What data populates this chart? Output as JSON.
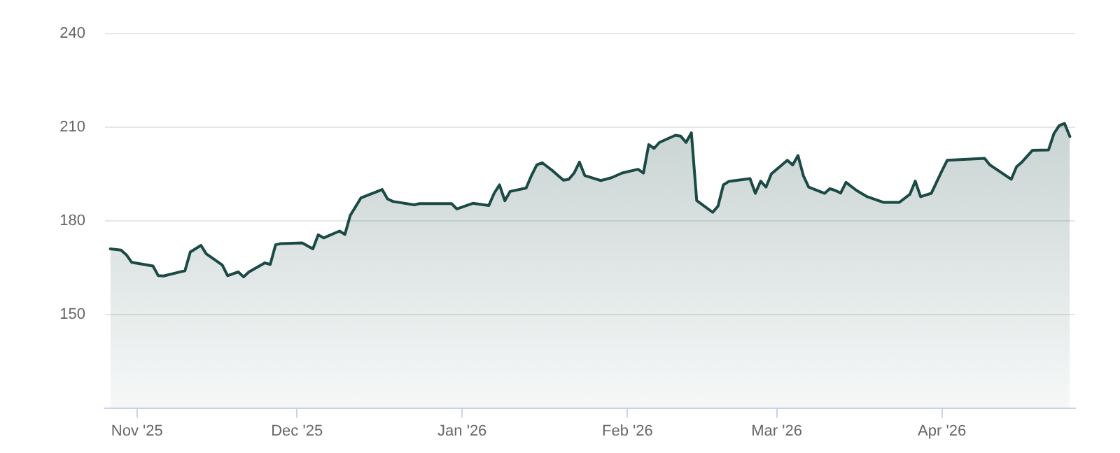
{
  "chart_data": {
    "type": "area",
    "xlim": [
      "2025-10-26",
      "2026-04-26"
    ],
    "ylim": [
      120,
      240
    ],
    "yticks": [
      150,
      180,
      210,
      240
    ],
    "xticks": [
      {
        "value": "2025-11-01",
        "label": "Nov '25"
      },
      {
        "value": "2025-12-01",
        "label": "Dec '25"
      },
      {
        "value": "2026-01-01",
        "label": "Jan '26"
      },
      {
        "value": "2026-02-01",
        "label": "Feb '26"
      },
      {
        "value": "2026-03-01",
        "label": "Mar '26"
      },
      {
        "value": "2026-04-01",
        "label": "Apr '26"
      }
    ],
    "grid": "y",
    "marker": "none",
    "line_style": "solid",
    "x": [
      "2025-10-27",
      "2025-10-29",
      "2025-10-30",
      "2025-10-31",
      "2025-11-04",
      "2025-11-05",
      "2025-11-06",
      "2025-11-10",
      "2025-11-11",
      "2025-11-13",
      "2025-11-14",
      "2025-11-15",
      "2025-11-17",
      "2025-11-18",
      "2025-11-20",
      "2025-11-21",
      "2025-11-22",
      "2025-11-25",
      "2025-11-26",
      "2025-11-27",
      "2025-11-28",
      "2025-12-02",
      "2025-12-04",
      "2025-12-05",
      "2025-12-06",
      "2025-12-09",
      "2025-12-10",
      "2025-12-11",
      "2025-12-13",
      "2025-12-17",
      "2025-12-18",
      "2025-12-19",
      "2025-12-23",
      "2025-12-24",
      "2025-12-30",
      "2025-12-31",
      "2026-01-03",
      "2026-01-06",
      "2026-01-07",
      "2026-01-08",
      "2026-01-09",
      "2026-01-10",
      "2026-01-13",
      "2026-01-14",
      "2026-01-15",
      "2026-01-16",
      "2026-01-18",
      "2026-01-20",
      "2026-01-21",
      "2026-01-22",
      "2026-01-23",
      "2026-01-24",
      "2026-01-27",
      "2026-01-29",
      "2026-01-31",
      "2026-02-03",
      "2026-02-04",
      "2026-02-05",
      "2026-02-06",
      "2026-02-07",
      "2026-02-10",
      "2026-02-11",
      "2026-02-12",
      "2026-02-13",
      "2026-02-14",
      "2026-02-17",
      "2026-02-18",
      "2026-02-19",
      "2026-02-20",
      "2026-02-24",
      "2026-02-25",
      "2026-02-26",
      "2026-02-27",
      "2026-02-28",
      "2026-03-03",
      "2026-03-04",
      "2026-03-05",
      "2026-03-06",
      "2026-03-07",
      "2026-03-10",
      "2026-03-11",
      "2026-03-12",
      "2026-03-13",
      "2026-03-14",
      "2026-03-16",
      "2026-03-18",
      "2026-03-21",
      "2026-03-24",
      "2026-03-26",
      "2026-03-27",
      "2026-03-28",
      "2026-03-30",
      "2026-04-01",
      "2026-04-02",
      "2026-04-09",
      "2026-04-10",
      "2026-04-14",
      "2026-04-15",
      "2026-04-16",
      "2026-04-18",
      "2026-04-21",
      "2026-04-22",
      "2026-04-23",
      "2026-04-24",
      "2026-04-25"
    ],
    "series": [
      {
        "color": "#1b4a45",
        "values": [
          171.0,
          170.6,
          169.1,
          166.7,
          165.5,
          162.4,
          162.3,
          164.0,
          170.0,
          172.1,
          169.4,
          168.2,
          165.8,
          162.4,
          163.6,
          162.0,
          163.6,
          166.5,
          166.0,
          172.3,
          172.7,
          172.9,
          171.0,
          175.5,
          174.5,
          176.7,
          175.6,
          181.7,
          187.3,
          190.0,
          187.0,
          186.2,
          185.1,
          185.5,
          185.5,
          183.8,
          185.6,
          184.9,
          188.8,
          191.5,
          186.4,
          189.4,
          190.5,
          194.5,
          197.9,
          198.6,
          196.0,
          193.0,
          193.3,
          195.3,
          198.8,
          194.5,
          192.9,
          193.8,
          195.3,
          196.5,
          195.3,
          204.4,
          203.2,
          205.1,
          207.4,
          207.1,
          205.1,
          208.2,
          186.5,
          182.7,
          184.7,
          191.5,
          192.6,
          193.5,
          188.8,
          192.7,
          190.8,
          195.0,
          199.4,
          197.9,
          200.9,
          194.5,
          190.8,
          188.8,
          190.3,
          189.7,
          188.9,
          192.3,
          189.7,
          187.7,
          185.9,
          185.9,
          188.5,
          192.7,
          187.7,
          188.8,
          196.0,
          199.4,
          200.0,
          197.9,
          193.3,
          197.3,
          198.8,
          202.6,
          202.7,
          207.9,
          210.5,
          211.2,
          207.0
        ]
      }
    ]
  }
}
